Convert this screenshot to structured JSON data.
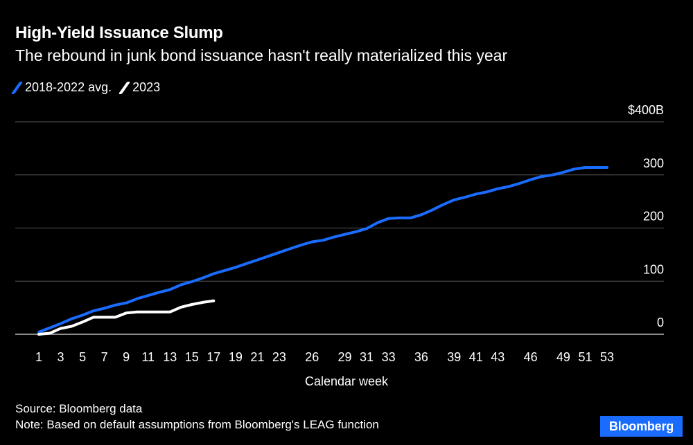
{
  "header": {
    "title": "High-Yield Issuance Slump",
    "subtitle": "The rebound in junk bond issuance hasn't really materialized this year"
  },
  "footer": {
    "source": "Source: Bloomberg data",
    "note": "Note: Based on default assumptions from Bloomberg's LEAG function",
    "logo": "Bloomberg"
  },
  "colors": {
    "avg": "#1a6cff",
    "current": "#ffffff",
    "grid": "#5a5a5a",
    "background": "#000000"
  },
  "chart_data": {
    "type": "line",
    "xlabel": "Calendar week",
    "ylabel": "",
    "xlim": [
      1,
      53
    ],
    "ylim": [
      0,
      400
    ],
    "y_ticks": [
      {
        "value": 400,
        "label": "$400B"
      },
      {
        "value": 300,
        "label": "300"
      },
      {
        "value": 200,
        "label": "200"
      },
      {
        "value": 100,
        "label": "100"
      },
      {
        "value": 0,
        "label": "0"
      }
    ],
    "x_ticks": [
      1,
      3,
      5,
      7,
      9,
      11,
      13,
      15,
      17,
      19,
      21,
      23,
      26,
      29,
      31,
      33,
      36,
      39,
      41,
      43,
      46,
      49,
      51,
      53
    ],
    "grid": true,
    "legend_position": "top-left",
    "series": [
      {
        "name": "2018-2022 avg.",
        "color": "#1a6cff",
        "x": [
          1,
          2,
          3,
          4,
          5,
          6,
          7,
          8,
          9,
          10,
          11,
          12,
          13,
          14,
          15,
          16,
          17,
          18,
          19,
          20,
          21,
          22,
          23,
          24,
          25,
          26,
          27,
          28,
          29,
          30,
          31,
          32,
          33,
          34,
          35,
          36,
          37,
          38,
          39,
          40,
          41,
          42,
          43,
          44,
          45,
          46,
          47,
          48,
          49,
          50,
          51,
          52,
          53
        ],
        "values": [
          4,
          12,
          20,
          29,
          36,
          44,
          49,
          55,
          59,
          67,
          73,
          79,
          84,
          93,
          99,
          106,
          114,
          120,
          126,
          133,
          140,
          147,
          154,
          161,
          168,
          174,
          177,
          183,
          188,
          193,
          199,
          210,
          218,
          219,
          219,
          225,
          234,
          244,
          253,
          258,
          264,
          268,
          274,
          278,
          284,
          291,
          297,
          300,
          305,
          311,
          314,
          314,
          314
        ]
      },
      {
        "name": "2023",
        "color": "#ffffff",
        "x": [
          1,
          2,
          3,
          4,
          5,
          6,
          7,
          8,
          9,
          10,
          11,
          12,
          13,
          14,
          15,
          16,
          17
        ],
        "values": [
          0,
          2,
          11,
          15,
          23,
          32,
          32,
          32,
          40,
          42,
          42,
          42,
          42,
          51,
          56,
          60,
          63
        ]
      }
    ]
  }
}
